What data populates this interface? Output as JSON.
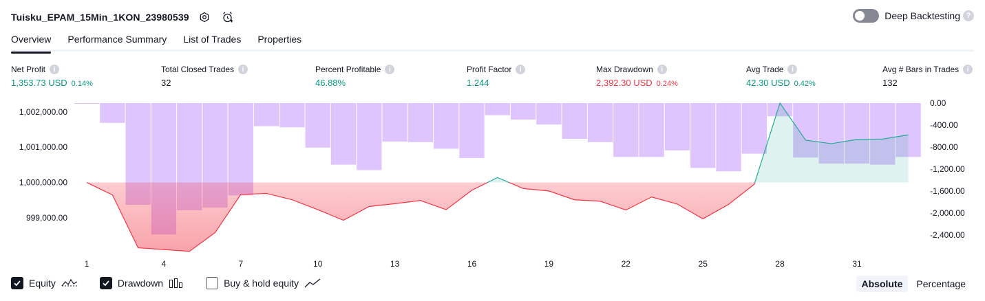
{
  "header": {
    "title": "Tuisku_EPAM_15Min_1KON_23980539",
    "deep_backtesting_label": "Deep Backtesting",
    "help_glyph": "?"
  },
  "tabs": [
    {
      "label": "Overview",
      "active": true
    },
    {
      "label": "Performance Summary",
      "active": false
    },
    {
      "label": "List of Trades",
      "active": false
    },
    {
      "label": "Properties",
      "active": false
    }
  ],
  "metrics": [
    {
      "label": "Net Profit",
      "value": "1,353.73 USD",
      "pct": "0.14%",
      "tone": "pos"
    },
    {
      "label": "Total Closed Trades",
      "value": "32",
      "pct": "",
      "tone": ""
    },
    {
      "label": "Percent Profitable",
      "value": "46.88%",
      "pct": "",
      "tone": "pos"
    },
    {
      "label": "Profit Factor",
      "value": "1.244",
      "pct": "",
      "tone": "pos"
    },
    {
      "label": "Max Drawdown",
      "value": "2,392.30 USD",
      "pct": "0.24%",
      "tone": "neg"
    },
    {
      "label": "Avg Trade",
      "value": "42.30 USD",
      "pct": "0.42%",
      "tone": "pos"
    },
    {
      "label": "Avg # Bars in Trades",
      "value": "132",
      "pct": "",
      "tone": ""
    }
  ],
  "chart_data": {
    "type": "line",
    "x": [
      1,
      2,
      3,
      4,
      5,
      6,
      7,
      8,
      9,
      10,
      11,
      12,
      13,
      14,
      15,
      16,
      17,
      18,
      19,
      20,
      21,
      22,
      23,
      24,
      25,
      26,
      27,
      28,
      29,
      30,
      31,
      32,
      33
    ],
    "x_tick_labels": [
      "1",
      "4",
      "7",
      "10",
      "13",
      "16",
      "19",
      "22",
      "25",
      "28",
      "31"
    ],
    "equity_axis": {
      "tick_labels": [
        "1,002,000.00",
        "1,001,000.00",
        "1,000,000.00",
        "999,000.00"
      ],
      "ylim": [
        998200,
        1002250
      ]
    },
    "drawdown_axis": {
      "tick_labels": [
        "0.00",
        "-400.00",
        "-800.00",
        "-1,200.00",
        "-1,600.00",
        "-2,000.00",
        "-2,400.00"
      ],
      "ylim": [
        -2600,
        0
      ]
    },
    "baseline": 1000000,
    "series": [
      {
        "name": "Equity",
        "axis": "left",
        "values": [
          1000000,
          999650,
          998150,
          998100,
          998050,
          998580,
          999660,
          999690,
          999510,
          999230,
          998930,
          999320,
          999400,
          999490,
          999230,
          999780,
          1000140,
          999830,
          999760,
          999510,
          999470,
          999220,
          999590,
          999390,
          998970,
          999380,
          999950,
          1002250,
          1001200,
          1001100,
          1001220,
          1001230,
          1001350
        ]
      },
      {
        "name": "Drawdown",
        "axis": "right",
        "values": [
          -10,
          -360,
          -1850,
          -2390,
          -1950,
          -1900,
          -1680,
          -420,
          -440,
          -810,
          -1120,
          -1220,
          -700,
          -710,
          -830,
          -1000,
          -220,
          -300,
          -390,
          -650,
          -710,
          -980,
          -980,
          -860,
          -1180,
          -1240,
          -920,
          -240,
          -990,
          -1100,
          -1100,
          -1120,
          -980
        ]
      }
    ],
    "colors": {
      "drawdown_bar": "#dfc5fd",
      "equity_loss_line": "#f23645",
      "equity_gain_line": "#22ab94",
      "equity_loss_fill_top": "rgba(242,54,69,0.02)",
      "equity_loss_fill_bottom": "rgba(242,54,69,0.45)",
      "equity_gain_fill": "rgba(34,171,148,0.15)"
    }
  },
  "legend": [
    {
      "label": "Equity",
      "checked": true,
      "glyph": "equity-line-icon"
    },
    {
      "label": "Drawdown",
      "checked": true,
      "glyph": "bars-icon"
    },
    {
      "label": "Buy & hold equity",
      "checked": false,
      "glyph": "trend-line-icon"
    }
  ],
  "scale_toggle": [
    {
      "label": "Absolute",
      "active": true
    },
    {
      "label": "Percentage",
      "active": false
    }
  ]
}
